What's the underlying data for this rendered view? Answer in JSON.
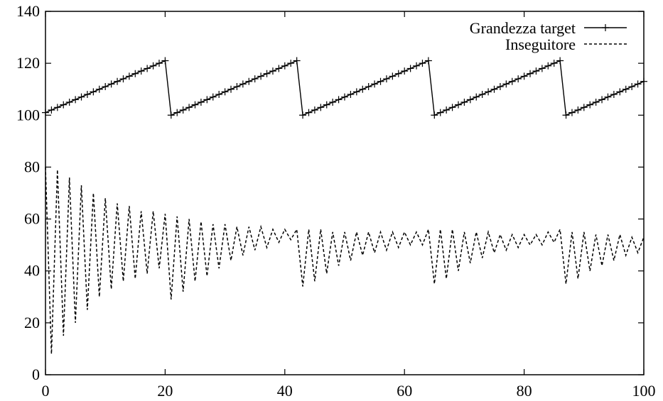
{
  "chart_data": {
    "type": "line",
    "title": "",
    "xlabel": "",
    "ylabel": "",
    "xlim": [
      0,
      100
    ],
    "ylim": [
      0,
      140
    ],
    "xticks": [
      "0",
      "20",
      "40",
      "60",
      "80",
      "100"
    ],
    "yticks": [
      "0",
      "20",
      "40",
      "60",
      "80",
      "100",
      "120",
      "140"
    ],
    "legend_position": "top-right",
    "series": [
      {
        "name": "Grandezza target",
        "style": "solid line with plus markers",
        "color": "#000000",
        "pattern": "sawtooth: rises by 1 per step from 100 to 121, then resets to 100 (period 22)",
        "x_start": 0,
        "x_end": 100,
        "values": [
          101,
          102,
          103,
          104,
          105,
          106,
          107,
          108,
          109,
          110,
          111,
          112,
          113,
          114,
          115,
          116,
          117,
          118,
          119,
          120,
          121,
          100,
          101,
          102,
          103,
          104,
          105,
          106,
          107,
          108,
          109,
          110,
          111,
          112,
          113,
          114,
          115,
          116,
          117,
          118,
          119,
          120,
          121,
          100,
          101,
          102,
          103,
          104,
          105,
          106,
          107,
          108,
          109,
          110,
          111,
          112,
          113,
          114,
          115,
          116,
          117,
          118,
          119,
          120,
          121,
          100,
          101,
          102,
          103,
          104,
          105,
          106,
          107,
          108,
          109,
          110,
          111,
          112,
          113,
          114,
          115,
          116,
          117,
          118,
          119,
          120,
          121,
          100,
          101,
          102,
          103,
          104,
          105,
          106,
          107,
          108,
          109,
          110,
          111,
          112,
          113
        ]
      },
      {
        "name": "Inseguitore",
        "style": "dashed line",
        "color": "#000000",
        "pattern": "damped oscillation around ~50, re-excited at each target reset",
        "x_start": 0,
        "x_end": 100,
        "values": [
          80,
          8,
          79,
          15,
          76,
          20,
          73,
          25,
          70,
          30,
          68,
          33,
          66,
          36,
          65,
          37,
          63,
          39,
          63,
          41,
          62,
          29,
          61,
          32,
          60,
          36,
          59,
          38,
          58,
          41,
          58,
          44,
          57,
          46,
          57,
          48,
          57,
          49,
          56,
          51,
          56,
          52,
          56,
          34,
          56,
          36,
          56,
          39,
          55,
          42,
          55,
          44,
          55,
          46,
          55,
          47,
          55,
          48,
          55,
          49,
          55,
          50,
          55,
          50,
          56,
          35,
          56,
          37,
          56,
          40,
          55,
          43,
          55,
          45,
          55,
          47,
          54,
          48,
          54,
          49,
          54,
          50,
          54,
          50,
          55,
          51,
          56,
          35,
          55,
          37,
          55,
          40,
          54,
          42,
          54,
          44,
          54,
          46,
          53,
          47,
          53
        ]
      }
    ]
  }
}
